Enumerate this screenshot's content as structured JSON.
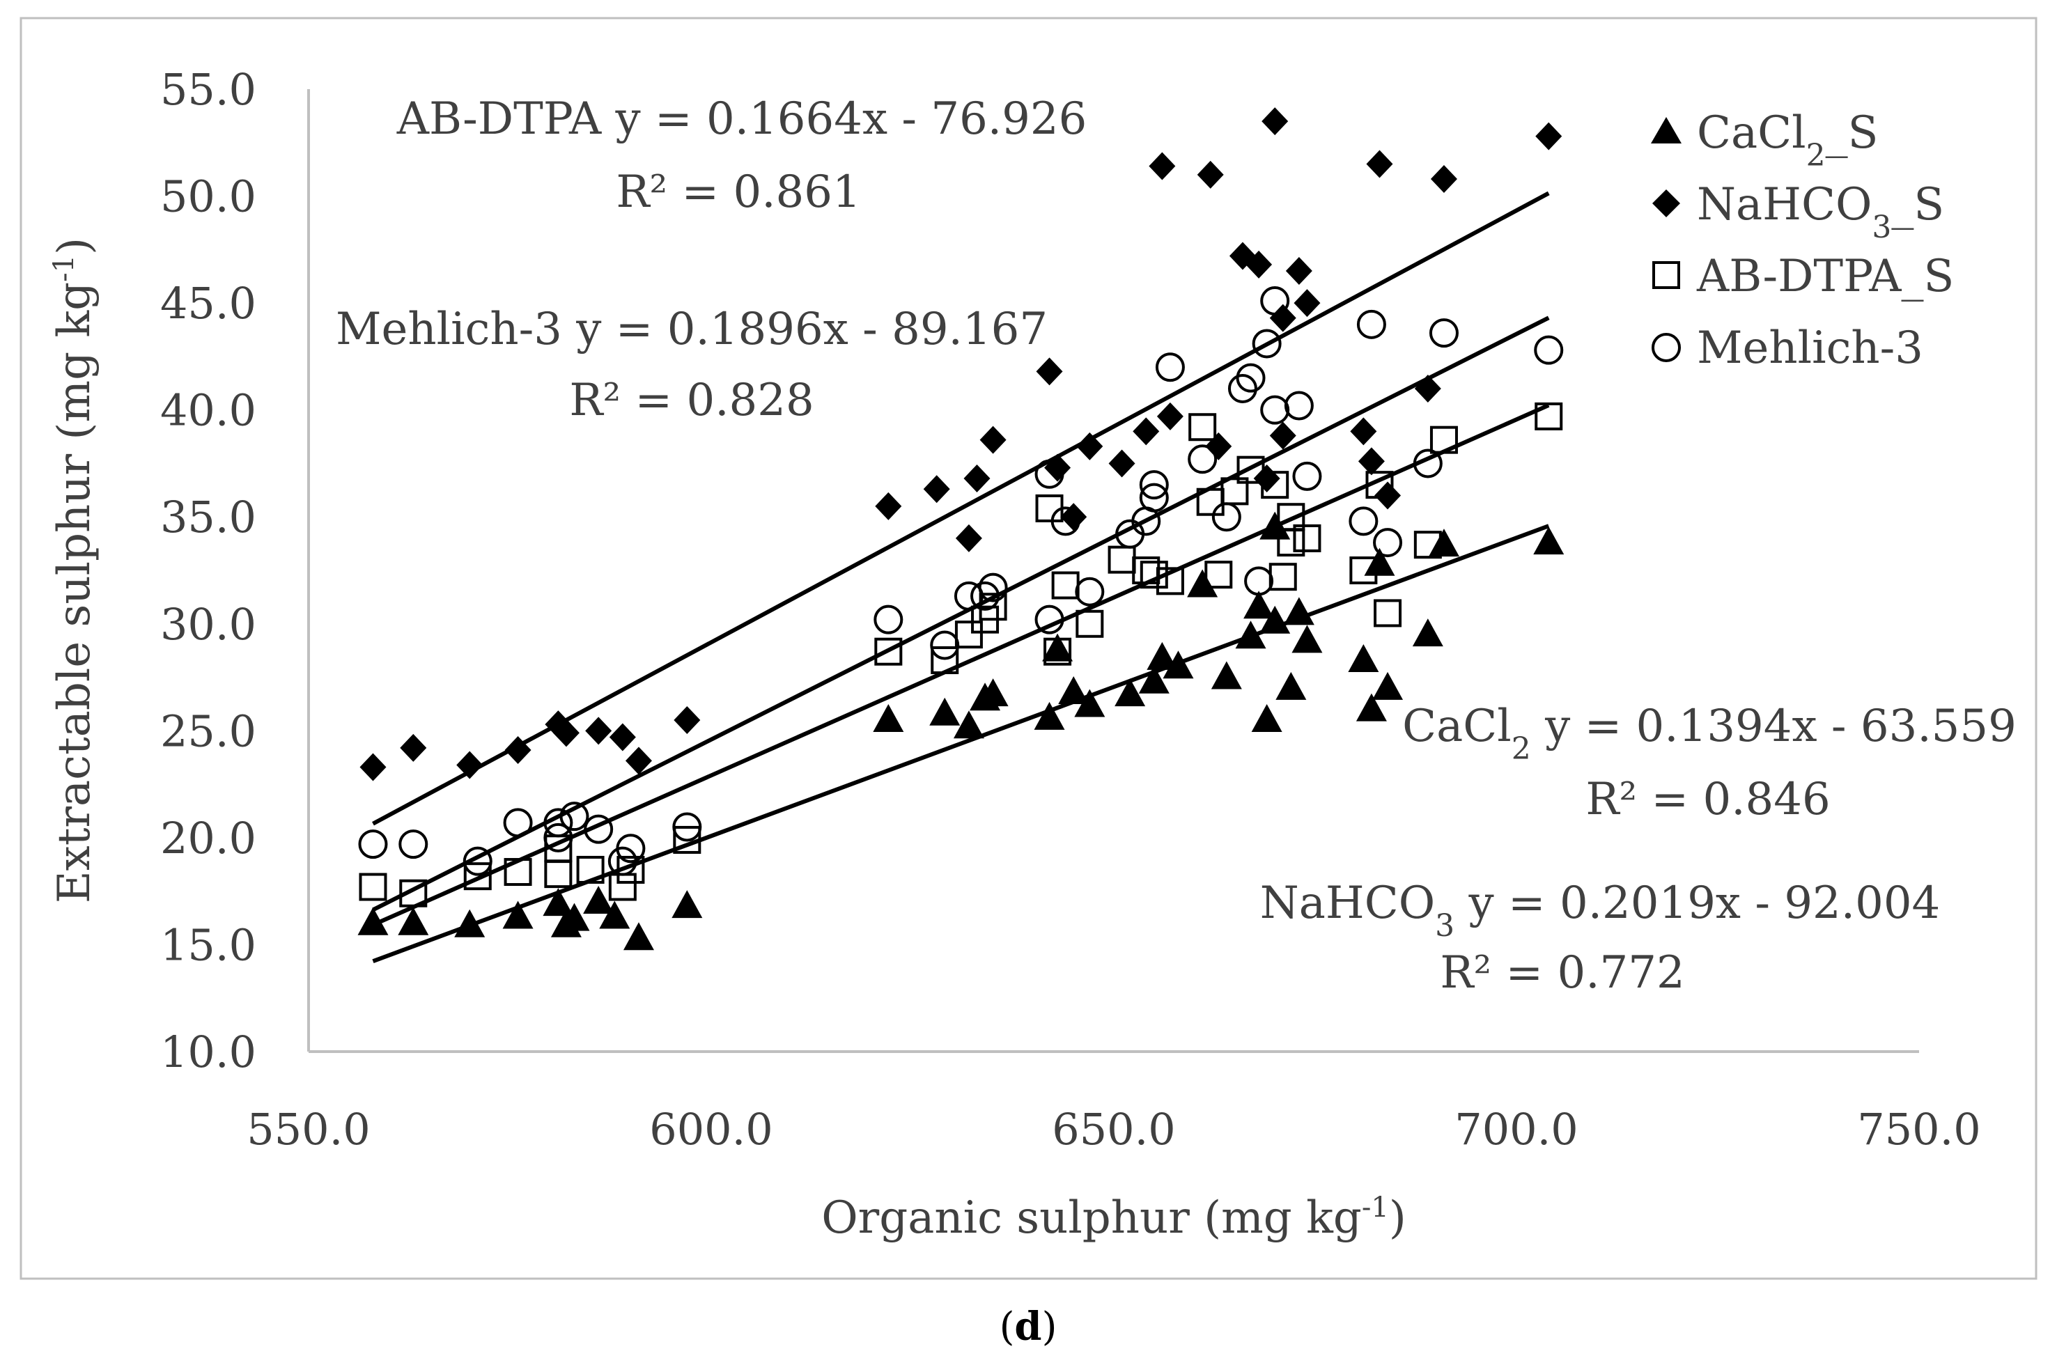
{
  "chart_data": {
    "type": "scatter",
    "title": "",
    "xlabel": "Organic sulphur (mg kg-1)",
    "xlabel_main": "Organic sulphur (mg kg",
    "xlabel_sup": "-1",
    "xlabel_end": ")",
    "ylabel": "Extractable sulphur (mg kg-1)",
    "ylabel_main": "Extractable sulphur (mg kg",
    "ylabel_sup": "-1",
    "ylabel_end": ")",
    "xlim": [
      550,
      750
    ],
    "ylim": [
      10,
      55
    ],
    "xticks": [
      550,
      600,
      650,
      700,
      750
    ],
    "xtick_labels": [
      "550.0",
      "600.0",
      "650.0",
      "700.0",
      "750.0"
    ],
    "yticks": [
      10,
      15,
      20,
      25,
      30,
      35,
      40,
      45,
      50,
      55
    ],
    "ytick_labels": [
      "10.0",
      "15.0",
      "20.0",
      "25.0",
      "30.0",
      "35.0",
      "40.0",
      "45.0",
      "50.0",
      "55.0"
    ],
    "grid": false,
    "legend_position": "top-right",
    "legend": [
      {
        "label_main": "CaCl",
        "label_sub": "2",
        "label_end": "_S",
        "marker": "triangle"
      },
      {
        "label_main": "NaHCO",
        "label_sub": "3",
        "label_end": "_S",
        "marker": "diamond"
      },
      {
        "label_main": "AB-DTPA_S",
        "label_sub": "",
        "label_end": "",
        "marker": "square"
      },
      {
        "label_main": "Mehlich-3",
        "label_sub": "",
        "label_end": "",
        "marker": "circle"
      }
    ],
    "series": [
      {
        "name": "CaCl2_S",
        "marker": "triangle",
        "x": [
          558,
          563,
          570,
          576,
          581,
          582,
          583,
          586,
          588,
          591,
          597,
          622,
          629,
          632,
          634,
          635,
          642,
          643,
          645,
          647,
          652,
          655,
          656,
          658,
          661,
          664,
          667,
          668,
          669,
          670,
          670,
          672,
          673,
          674,
          681,
          682,
          683,
          684,
          689,
          691,
          704
        ],
        "y": [
          16.0,
          16.0,
          15.9,
          16.3,
          16.9,
          15.9,
          16.2,
          17.0,
          16.3,
          15.3,
          16.8,
          25.5,
          25.8,
          25.2,
          26.5,
          26.7,
          25.6,
          28.8,
          26.8,
          26.2,
          26.7,
          27.3,
          28.4,
          28.0,
          31.8,
          27.5,
          29.4,
          30.8,
          25.5,
          34.5,
          30.1,
          27.0,
          30.5,
          29.2,
          28.3,
          26.0,
          32.8,
          27.0,
          29.5,
          33.7,
          33.8
        ]
      },
      {
        "name": "NaHCO3_S",
        "marker": "diamond",
        "x": [
          558,
          563,
          570,
          576,
          581,
          582,
          586,
          589,
          591,
          597,
          622,
          628,
          632,
          633,
          635,
          642,
          643,
          645,
          647,
          651,
          654,
          656,
          657,
          662,
          663,
          666,
          668,
          669,
          670,
          671,
          671,
          673,
          674,
          681,
          682,
          683,
          684,
          689,
          691,
          704
        ],
        "y": [
          23.3,
          24.2,
          23.4,
          24.1,
          25.3,
          24.9,
          25.0,
          24.7,
          23.6,
          25.5,
          35.5,
          36.3,
          34.0,
          36.8,
          38.6,
          41.8,
          37.3,
          35.0,
          38.3,
          37.5,
          39.0,
          51.4,
          39.7,
          51.0,
          38.3,
          47.2,
          46.8,
          36.8,
          53.5,
          44.3,
          38.8,
          46.5,
          45.0,
          39.0,
          37.6,
          51.5,
          36.0,
          41.0,
          50.8,
          52.8
        ]
      },
      {
        "name": "AB-DTPA_S",
        "marker": "square",
        "x": [
          558,
          563,
          571,
          576,
          581,
          581,
          585,
          589,
          590,
          597,
          622,
          629,
          632,
          634,
          635,
          642,
          643,
          644,
          647,
          651,
          654,
          655,
          657,
          661,
          662,
          663,
          665,
          667,
          670,
          671,
          672,
          672,
          674,
          681,
          683,
          684,
          689,
          691,
          704
        ],
        "y": [
          17.7,
          17.4,
          18.2,
          18.4,
          18.3,
          19.5,
          18.5,
          17.7,
          18.5,
          19.9,
          28.7,
          28.3,
          29.5,
          30.2,
          30.8,
          35.4,
          28.7,
          31.8,
          30.0,
          33.0,
          32.5,
          32.3,
          32.0,
          39.2,
          35.7,
          32.3,
          36.2,
          37.2,
          36.5,
          32.2,
          33.8,
          35.0,
          34.0,
          32.5,
          36.5,
          30.5,
          33.7,
          38.6,
          39.7
        ]
      },
      {
        "name": "Mehlich-3",
        "marker": "circle",
        "x": [
          558,
          563,
          571,
          576,
          581,
          581,
          583,
          586,
          589,
          590,
          597,
          622,
          629,
          632,
          634,
          635,
          642,
          642,
          644,
          647,
          652,
          654,
          655,
          655,
          657,
          661,
          664,
          666,
          667,
          668,
          669,
          670,
          670,
          673,
          674,
          681,
          682,
          684,
          689,
          691,
          704
        ],
        "y": [
          19.7,
          19.7,
          18.9,
          20.7,
          20.7,
          20.0,
          21.0,
          20.4,
          18.9,
          19.5,
          20.5,
          30.2,
          29.0,
          31.3,
          31.3,
          31.7,
          37.0,
          30.2,
          34.8,
          31.5,
          34.2,
          34.8,
          36.5,
          35.9,
          42.0,
          37.7,
          35.0,
          41.0,
          41.5,
          32.0,
          43.1,
          40.0,
          45.1,
          40.2,
          36.9,
          34.8,
          44.0,
          33.8,
          37.5,
          43.6,
          42.8
        ]
      }
    ],
    "trendlines": [
      {
        "name": "AB-DTPA",
        "slope": 0.1664,
        "intercept": -76.926,
        "x_range": [
          558,
          704
        ],
        "style": "black solid"
      },
      {
        "name": "Mehlich-3",
        "slope": 0.1896,
        "intercept": -89.167,
        "x_range": [
          558,
          704
        ],
        "style": "black solid"
      },
      {
        "name": "CaCl2",
        "slope": 0.1394,
        "intercept": -63.559,
        "x_range": [
          558,
          704
        ],
        "style": "black solid"
      },
      {
        "name": "NaHCO3",
        "slope": 0.2019,
        "intercept": -92.004,
        "x_range": [
          558,
          704
        ],
        "style": "black solid"
      }
    ],
    "annotations": {
      "abdtpa_eq": "AB-DTPA y = 0.1664x - 76.926",
      "abdtpa_r2": "R² = 0.861",
      "mehlich_eq": "Mehlich-3 y = 0.1896x - 89.167",
      "mehlich_r2": "R² = 0.828",
      "cacl_eq_main": "CaCl",
      "cacl_eq_sub": "2",
      "cacl_eq_rest": " y = 0.1394x - 63.559",
      "cacl_r2": "R² = 0.846",
      "nahco_eq_main": "NaHCO",
      "nahco_eq_sub": "3",
      "nahco_eq_rest": " y = 0.2019x - 92.004",
      "nahco_r2": "R² = 0.772"
    },
    "caption": {
      "open": "(",
      "letter": "d",
      "close": ")"
    }
  }
}
